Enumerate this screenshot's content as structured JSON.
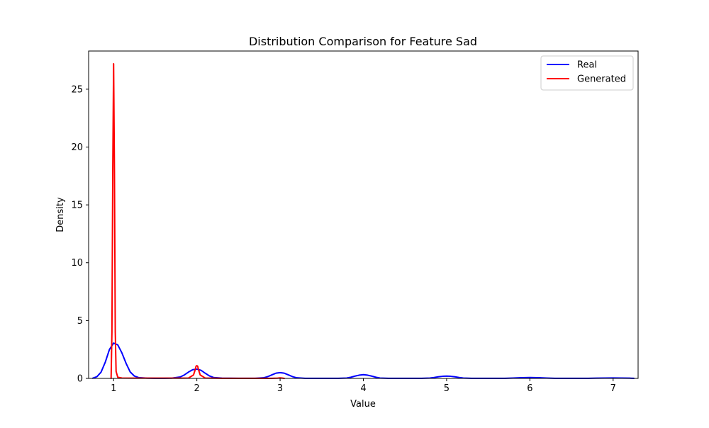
{
  "chart_data": {
    "type": "line",
    "title": "Distribution Comparison for Feature Sad",
    "xlabel": "Value",
    "ylabel": "Density",
    "xlim": [
      0.7,
      7.3
    ],
    "ylim": [
      0,
      28.3
    ],
    "x_ticks": [
      1,
      2,
      3,
      4,
      5,
      6,
      7
    ],
    "y_ticks": [
      0,
      5,
      10,
      15,
      20,
      25
    ],
    "grid": false,
    "legend_position": "top-right",
    "series": [
      {
        "name": "Real",
        "color": "#0000ff",
        "x": [
          0.75,
          0.8,
          0.85,
          0.9,
          0.95,
          1.0,
          1.05,
          1.1,
          1.15,
          1.2,
          1.25,
          1.3,
          1.4,
          1.5,
          1.6,
          1.7,
          1.8,
          1.85,
          1.9,
          1.95,
          2.0,
          2.05,
          2.1,
          2.15,
          2.2,
          2.3,
          2.5,
          2.7,
          2.8,
          2.85,
          2.9,
          2.95,
          3.0,
          3.05,
          3.1,
          3.15,
          3.2,
          3.3,
          3.5,
          3.7,
          3.8,
          3.85,
          3.9,
          3.95,
          4.0,
          4.05,
          4.1,
          4.15,
          4.2,
          4.3,
          4.5,
          4.7,
          4.8,
          4.85,
          4.9,
          4.95,
          5.0,
          5.05,
          5.1,
          5.15,
          5.2,
          5.3,
          5.5,
          5.7,
          5.8,
          5.9,
          6.0,
          6.1,
          6.2,
          6.3,
          6.5,
          6.7,
          6.8,
          6.9,
          7.0,
          7.1,
          7.2,
          7.25
        ],
        "y": [
          0.02,
          0.15,
          0.55,
          1.4,
          2.5,
          3.05,
          2.9,
          2.2,
          1.3,
          0.55,
          0.2,
          0.07,
          0.02,
          0.01,
          0.01,
          0.02,
          0.12,
          0.3,
          0.55,
          0.75,
          0.8,
          0.7,
          0.45,
          0.22,
          0.08,
          0.02,
          0.01,
          0.01,
          0.05,
          0.15,
          0.3,
          0.45,
          0.5,
          0.45,
          0.3,
          0.15,
          0.05,
          0.01,
          0.01,
          0.01,
          0.03,
          0.1,
          0.2,
          0.28,
          0.32,
          0.28,
          0.2,
          0.1,
          0.03,
          0.01,
          0.01,
          0.01,
          0.03,
          0.08,
          0.14,
          0.18,
          0.2,
          0.18,
          0.14,
          0.08,
          0.03,
          0.01,
          0.01,
          0.01,
          0.03,
          0.06,
          0.08,
          0.06,
          0.03,
          0.01,
          0.01,
          0.01,
          0.02,
          0.03,
          0.04,
          0.03,
          0.02,
          0.01
        ]
      },
      {
        "name": "Generated",
        "color": "#ff0000",
        "x": [
          0.97,
          0.98,
          0.99,
          1.0,
          1.01,
          1.02,
          1.03,
          1.05,
          1.1,
          1.3,
          1.5,
          1.7,
          1.9,
          1.96,
          1.98,
          1.99,
          2.0,
          2.01,
          2.02,
          2.04,
          2.1,
          2.3,
          2.5,
          2.7,
          2.9,
          2.97,
          2.99,
          3.0,
          3.01,
          3.03,
          3.05
        ],
        "y": [
          0.0,
          4.0,
          18.0,
          27.2,
          18.0,
          4.0,
          0.6,
          0.1,
          0.03,
          0.02,
          0.02,
          0.02,
          0.03,
          0.3,
          0.75,
          1.05,
          1.1,
          1.05,
          0.75,
          0.3,
          0.03,
          0.01,
          0.01,
          0.01,
          0.01,
          0.02,
          0.04,
          0.05,
          0.04,
          0.02,
          0.0
        ]
      }
    ]
  }
}
